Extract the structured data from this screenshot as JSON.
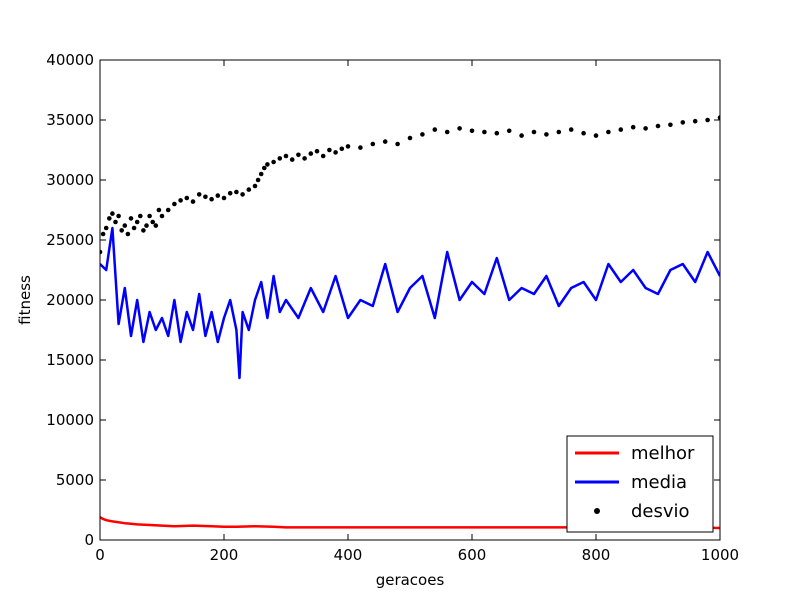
{
  "chart_data": {
    "type": "line",
    "title": "",
    "xlabel": "geracoes",
    "ylabel": "fitness",
    "xlim": [
      0,
      1000
    ],
    "ylim": [
      0,
      40000
    ],
    "xticks": [
      0,
      200,
      400,
      600,
      800,
      1000
    ],
    "yticks": [
      0,
      5000,
      10000,
      15000,
      20000,
      25000,
      30000,
      35000,
      40000
    ],
    "grid": false,
    "legend": {
      "placement": "lower-right"
    },
    "series": [
      {
        "name": "melhor",
        "style": "line",
        "color": "#ff0000",
        "x": [
          0,
          5,
          10,
          20,
          40,
          60,
          80,
          100,
          120,
          150,
          180,
          200,
          220,
          250,
          280,
          300,
          330,
          360,
          400,
          450,
          500,
          550,
          600,
          650,
          700,
          750,
          800,
          850,
          900,
          950,
          1000
        ],
        "y": [
          1900,
          1750,
          1650,
          1550,
          1400,
          1300,
          1250,
          1200,
          1150,
          1200,
          1150,
          1100,
          1100,
          1150,
          1100,
          1050,
          1050,
          1050,
          1050,
          1050,
          1050,
          1050,
          1050,
          1050,
          1050,
          1050,
          1050,
          1050,
          1050,
          1050,
          1000
        ]
      },
      {
        "name": "media",
        "style": "line",
        "color": "#0000ff",
        "x": [
          0,
          10,
          20,
          30,
          40,
          50,
          60,
          70,
          80,
          90,
          100,
          110,
          120,
          130,
          140,
          150,
          160,
          170,
          180,
          190,
          200,
          210,
          220,
          225,
          230,
          240,
          250,
          260,
          270,
          280,
          290,
          300,
          320,
          340,
          360,
          380,
          400,
          420,
          440,
          460,
          480,
          500,
          520,
          540,
          560,
          580,
          600,
          620,
          640,
          660,
          680,
          700,
          720,
          740,
          760,
          780,
          800,
          820,
          840,
          860,
          880,
          900,
          920,
          940,
          960,
          980,
          1000
        ],
        "y": [
          23000,
          22500,
          26000,
          18000,
          21000,
          17000,
          20000,
          16500,
          19000,
          17500,
          18500,
          17000,
          20000,
          16500,
          19000,
          17500,
          20500,
          17000,
          19000,
          16500,
          18500,
          20000,
          17500,
          13500,
          19000,
          17500,
          20000,
          21500,
          18500,
          22000,
          19000,
          20000,
          18500,
          21000,
          19000,
          22000,
          18500,
          20000,
          19500,
          23000,
          19000,
          21000,
          22000,
          18500,
          24000,
          20000,
          21500,
          20500,
          23500,
          20000,
          21000,
          20500,
          22000,
          19500,
          21000,
          21500,
          20000,
          23000,
          21500,
          22500,
          21000,
          20500,
          22500,
          23000,
          21500,
          24000,
          22000
        ]
      },
      {
        "name": "desvio",
        "style": "points",
        "color": "#000000",
        "x": [
          0,
          5,
          10,
          15,
          20,
          25,
          30,
          35,
          40,
          45,
          50,
          55,
          60,
          65,
          70,
          75,
          80,
          85,
          90,
          95,
          100,
          110,
          120,
          130,
          140,
          150,
          160,
          170,
          180,
          190,
          200,
          210,
          220,
          230,
          240,
          250,
          255,
          260,
          265,
          270,
          280,
          290,
          300,
          310,
          320,
          330,
          340,
          350,
          360,
          370,
          380,
          390,
          400,
          420,
          440,
          460,
          480,
          500,
          520,
          540,
          560,
          580,
          600,
          620,
          640,
          660,
          680,
          700,
          720,
          740,
          760,
          780,
          800,
          820,
          840,
          860,
          880,
          900,
          920,
          940,
          960,
          980,
          1000
        ],
        "y": [
          24000,
          25500,
          26000,
          26800,
          27200,
          26500,
          27000,
          25800,
          26200,
          25500,
          26800,
          26000,
          26500,
          27000,
          25800,
          26200,
          27000,
          26500,
          26200,
          27500,
          27000,
          27500,
          28000,
          28300,
          28500,
          28200,
          28800,
          28600,
          28400,
          28700,
          28500,
          28900,
          29000,
          28800,
          29200,
          29500,
          30000,
          30500,
          31000,
          31300,
          31500,
          31800,
          32000,
          31700,
          32100,
          31800,
          32200,
          32400,
          32000,
          32500,
          32300,
          32600,
          32800,
          32700,
          33000,
          33200,
          33000,
          33500,
          33800,
          34200,
          34000,
          34300,
          34100,
          34000,
          33900,
          34100,
          33700,
          34000,
          33800,
          34000,
          34200,
          33900,
          33700,
          34000,
          34200,
          34400,
          34300,
          34500,
          34600,
          34800,
          34900,
          35000,
          35200
        ]
      }
    ]
  }
}
